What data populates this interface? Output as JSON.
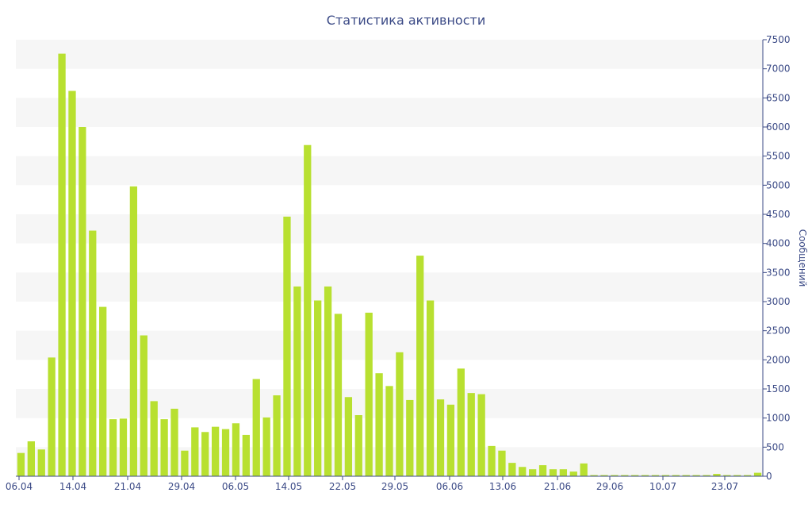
{
  "chart_data": {
    "type": "bar",
    "title": "Статистика активности",
    "xlabel": "",
    "ylabel": "Сообщений",
    "ylim": [
      0,
      7500
    ],
    "y_ticks": [
      0,
      500,
      1000,
      1500,
      2000,
      2500,
      3000,
      3500,
      4000,
      4500,
      5000,
      5500,
      6000,
      6500,
      7000,
      7500
    ],
    "y_axis_side": "right",
    "x_tick_labels": [
      "06.04",
      "14.04",
      "21.04",
      "29.04",
      "06.05",
      "14.05",
      "22.05",
      "29.05",
      "06.06",
      "13.06",
      "21.06",
      "29.06",
      "10.07",
      "23.07"
    ],
    "bar_color": "#b8e030",
    "grid": "alternating horizontal bands",
    "values": [
      400,
      600,
      460,
      2040,
      7260,
      6620,
      6000,
      4220,
      2910,
      980,
      990,
      4980,
      2420,
      1290,
      980,
      1160,
      440,
      840,
      760,
      850,
      810,
      910,
      710,
      1670,
      1010,
      1390,
      4460,
      3260,
      5690,
      3020,
      3260,
      2790,
      1360,
      1050,
      2810,
      1770,
      1550,
      2130,
      1310,
      3790,
      3020,
      1320,
      1230,
      1850,
      1430,
      1410,
      520,
      440,
      230,
      160,
      120,
      190,
      120,
      120,
      80,
      220,
      20,
      20,
      20,
      20,
      20,
      20,
      20,
      20,
      20,
      20,
      20,
      20,
      40,
      20,
      20,
      20,
      60
    ]
  }
}
